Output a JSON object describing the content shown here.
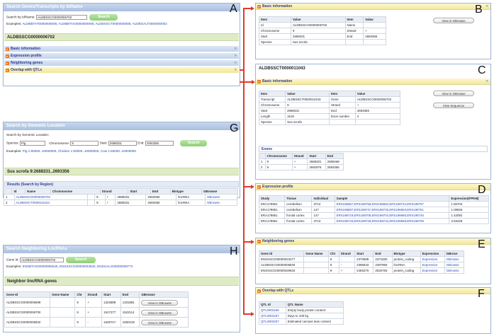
{
  "search_id": {
    "title": "Search Genes/Transcripts by Id/Name",
    "label": "Search by Id/Name:",
    "value": "ALDBSSCG0000006702",
    "button": "Search",
    "examples_label": "Examples:",
    "examples": [
      "ALDBBTAT0000000009",
      "ALDBBTAG0000000008",
      "ALDBSSCT0000000508",
      "ALDBGALT0000000002"
    ],
    "result_id": "ALDBSSCG0000006702",
    "sections": [
      "Basic information",
      "Expression profile",
      "Neighboring genes",
      "Overlap with QTLs"
    ]
  },
  "search_loc": {
    "title": "Search by Genomic Location",
    "subtitle": "Search by Genomic Location:",
    "species_label": "Species:",
    "species_value": "Pig",
    "chromosome_label": "Chromosome:",
    "chromosome_value": "9",
    "start_label": "Start:",
    "start_value": "2688331",
    "end_label": "End:",
    "end_value": "2693356",
    "button": "Search",
    "examples_label": "Examples:",
    "examples": [
      "Pig 1:50000..10000000",
      "Chicken 1:50000..10000000",
      "Cow 1:50000..10000000"
    ],
    "result_title": "Sus scrofa  9:2688331..2693356",
    "results_header": "Results (Search by Region)",
    "columns": [
      "",
      "Id",
      "Name",
      "Chromosome",
      "Strand",
      "Start",
      "End",
      "Biotype",
      "GBrowse"
    ],
    "rows": [
      [
        "1",
        "ALDBSSCG0000006702",
        "",
        "9",
        "+",
        "2688331",
        "2693356",
        "lincRNA",
        "GBrowse"
      ],
      [
        "2",
        "ALDBSSCT0000011043",
        "",
        "9",
        "+",
        "2688331",
        "2693356",
        "lincRNA",
        "GBrowse"
      ]
    ]
  },
  "search_neighbor": {
    "title": "Search Neighboring LncRNAs",
    "label": "Gene Id:",
    "value": "ALDBSSCG0000006702",
    "button": "Search",
    "examples_label": "Examples:",
    "examples": [
      "ENSBTAG00000005540",
      "ENSSSCG00000003632",
      "ENSGALG00000009772"
    ],
    "result_title": "Neighbor lincRNA genes",
    "columns": [
      "Gene Id",
      "Gene Name",
      "Chr",
      "Strand",
      "Start",
      "End",
      "GBrowse"
    ],
    "rows": [
      [
        "ALDBSSCG0000006699",
        "",
        "9",
        "+",
        "1323888",
        "1331881",
        "View in GBrowse"
      ],
      [
        "ALDBSSCG0000006700",
        "",
        "9",
        "+",
        "1517277",
        "1522114",
        "View in GBrowse"
      ],
      [
        "ALDBSSCG0000006932",
        "",
        "9",
        "-",
        "1649717",
        "1650419",
        "View in GBrowse"
      ]
    ]
  },
  "basic_b": {
    "title": "Basic information",
    "button": "View in GBrowse",
    "columns": [
      "Item",
      "Value",
      "Item",
      "Value"
    ],
    "rows": [
      [
        "Id",
        "ALDBSSCG0000006702",
        "Name",
        ""
      ],
      [
        "Chromosome",
        "9",
        "Strand",
        "+"
      ],
      [
        "Start",
        "2688331",
        "End",
        "2693356"
      ],
      [
        "Species",
        "Sus scrofa",
        "",
        ""
      ]
    ]
  },
  "transcript_c": {
    "id": "ALDBSSCT0000011043",
    "title": "Basic information",
    "button1": "View in GBrowse",
    "button2": "View Sequence",
    "columns": [
      "Item",
      "Value",
      "Item",
      "Value"
    ],
    "rows": [
      [
        "Transcript",
        "ALDBSSCT0000011043",
        "Gene",
        "ALDBSSCG0000006702"
      ],
      [
        "Chromosome",
        "9",
        "Strand",
        "+"
      ],
      [
        "Start",
        "2688331",
        "End",
        "2693356"
      ],
      [
        "Length",
        "1519",
        "Exon number",
        "2"
      ],
      [
        "Species",
        "Sus scrofa",
        "",
        ""
      ]
    ],
    "exons_title": "Exons",
    "exon_columns": [
      "",
      "Chromosome",
      "Strand",
      "Start",
      "End"
    ],
    "exon_rows": [
      [
        "1",
        "9",
        "+",
        "2688331",
        "2689468"
      ],
      [
        "2",
        "9",
        "+",
        "2692976",
        "2693356"
      ]
    ]
  },
  "expression_d": {
    "title": "Expression profile",
    "columns": [
      "Study",
      "Tissue",
      "Individual",
      "Sample",
      "Expression(FPKM)"
    ],
    "rows": [
      [
        "ERA178851",
        "cerebellum",
        "3713",
        "ERS198667,ERS198758,ERS198684,ERS198744,ERS198757",
        "1.65703"
      ],
      [
        "ERA178851",
        "cerebellum",
        "147",
        "ERS198687,ERS198747,ERS198725,ERS198663,ERS198751",
        "1.08925"
      ],
      [
        "ERA178851",
        "frontal cortex",
        "147",
        "ERS198719,ERS198709,ERS198704,ERS198680,ERS198745",
        "1.42092"
      ],
      [
        "ERA178851",
        "frontal cortex",
        "3713",
        "ERS198733,ERS198729,ERS198742,ERS198666,ERS198706",
        "3.63228"
      ]
    ]
  },
  "neighbor_e": {
    "title": "Neighboring genes",
    "columns": [
      "Gene Id",
      "Gene Name",
      "Chr",
      "Strand",
      "Start",
      "End",
      "Biotype",
      "Expression",
      "GBrose"
    ],
    "rows": [
      [
        "ENSSSCG00000023477",
        "",
        "9",
        "-",
        "2370889",
        "2371830",
        "protein_coding",
        "Expression",
        "GBrowse"
      ],
      [
        "ALDBSSCG0000006933",
        "",
        "9",
        "-",
        "2396633",
        "2397965",
        "lincRNA",
        "Expression",
        "GBrowse"
      ],
      [
        "ENSSSCG00000029634",
        "",
        "9",
        "+",
        "2455370",
        "2526783",
        "protein_coding",
        "Expression",
        "GBrowse"
      ]
    ]
  },
  "qtl_f": {
    "title": "Overlap with QTLs",
    "columns": [
      "QTL Id",
      "QTL Name"
    ],
    "rows": [
      [
        "QTL0003186",
        "Empty body protein content"
      ],
      [
        "QTL0003187",
        "Days to 105 kg"
      ],
      [
        "QTL0003207",
        "Estimated carcass lean content"
      ]
    ]
  },
  "letters": [
    "A",
    "B",
    "C",
    "D",
    "E",
    "F",
    "G",
    "H"
  ],
  "colors": {
    "connector": "#e03b2b",
    "panel_border": "#9db5d4",
    "header": "#a9bfe0",
    "green_button": "#8fce76",
    "link": "#2a49b8"
  }
}
